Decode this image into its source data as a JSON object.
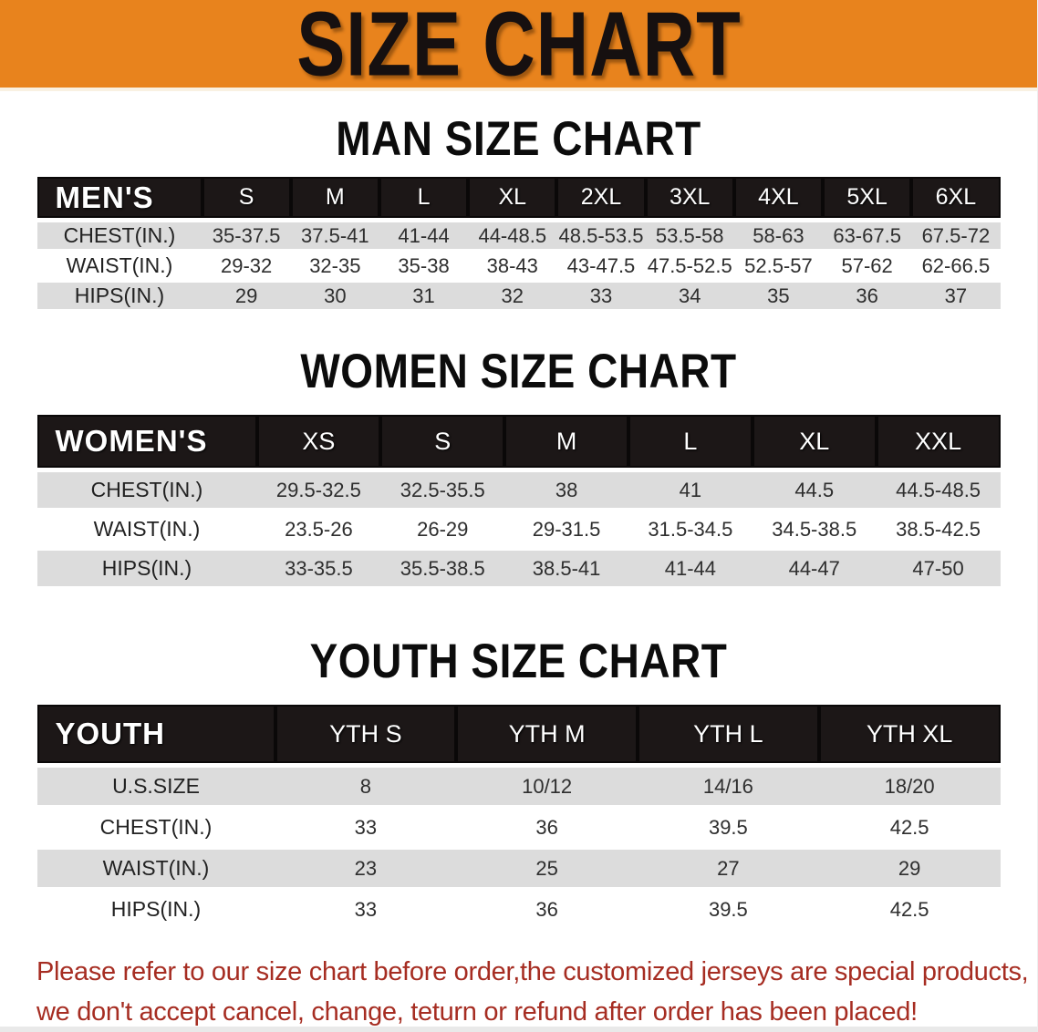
{
  "banner": {
    "title": "SIZE CHART",
    "bg_color": "#E8831D",
    "text_color": "#161010"
  },
  "men": {
    "heading": "MAN SIZE CHART",
    "table": {
      "header": [
        "MEN'S",
        "S",
        "M",
        "L",
        "XL",
        "2XL",
        "3XL",
        "4XL",
        "5XL",
        "6XL"
      ],
      "rows": [
        {
          "label": "CHEST(IN.)",
          "values": [
            "35-37.5",
            "37.5-41",
            "41-44",
            "44-48.5",
            "48.5-53.5",
            "53.5-58",
            "58-63",
            "63-67.5",
            "67.5-72"
          ]
        },
        {
          "label": "WAIST(IN.)",
          "values": [
            "29-32",
            "32-35",
            "35-38",
            "38-43",
            "43-47.5",
            "47.5-52.5",
            "52.5-57",
            "57-62",
            "62-66.5"
          ]
        },
        {
          "label": "HIPS(IN.)",
          "values": [
            "29",
            "30",
            "31",
            "32",
            "33",
            "34",
            "35",
            "36",
            "37"
          ]
        }
      ]
    }
  },
  "women": {
    "heading": "WOMEN SIZE CHART",
    "table": {
      "header": [
        "WOMEN'S",
        "XS",
        "S",
        "M",
        "L",
        "XL",
        "XXL"
      ],
      "rows": [
        {
          "label": "CHEST(IN.)",
          "values": [
            "29.5-32.5",
            "32.5-35.5",
            "38",
            "41",
            "44.5",
            "44.5-48.5"
          ]
        },
        {
          "label": "WAIST(IN.)",
          "values": [
            "23.5-26",
            "26-29",
            "29-31.5",
            "31.5-34.5",
            "34.5-38.5",
            "38.5-42.5"
          ]
        },
        {
          "label": "HIPS(IN.)",
          "values": [
            "33-35.5",
            "35.5-38.5",
            "38.5-41",
            "41-44",
            "44-47",
            "47-50"
          ]
        }
      ]
    }
  },
  "youth": {
    "heading": "YOUTH SIZE CHART",
    "table": {
      "header": [
        "YOUTH",
        "YTH S",
        "YTH M",
        "YTH L",
        "YTH XL"
      ],
      "rows": [
        {
          "label": "U.S.SIZE",
          "values": [
            "8",
            "10/12",
            "14/16",
            "18/20"
          ]
        },
        {
          "label": "CHEST(IN.)",
          "values": [
            "33",
            "36",
            "39.5",
            "42.5"
          ]
        },
        {
          "label": "WAIST(IN.)",
          "values": [
            "23",
            "25",
            "27",
            "29"
          ]
        },
        {
          "label": "HIPS(IN.)",
          "values": [
            "33",
            "36",
            "39.5",
            "42.5"
          ]
        }
      ]
    }
  },
  "disclaimer": {
    "line1": "Please refer to our size chart before order,the customized jerseys are special products,",
    "line2": "we don't accept cancel, change, teturn or refund after order has been placed!",
    "color": "#A62D22"
  },
  "colors": {
    "banner_orange": "#E8831D",
    "header_black": "#1C1717",
    "stripe_gray": "#DCDCDC",
    "disclaimer_red": "#A62D22"
  }
}
